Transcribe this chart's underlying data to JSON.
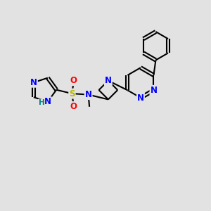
{
  "bg_color": "#e2e2e2",
  "bond_color": "#000000",
  "atom_colors": {
    "N": "#0000ff",
    "S": "#b8b800",
    "O": "#ff0000",
    "C": "#000000",
    "H": "#008080"
  },
  "font_size_atom": 8.5,
  "font_size_h": 7.5
}
